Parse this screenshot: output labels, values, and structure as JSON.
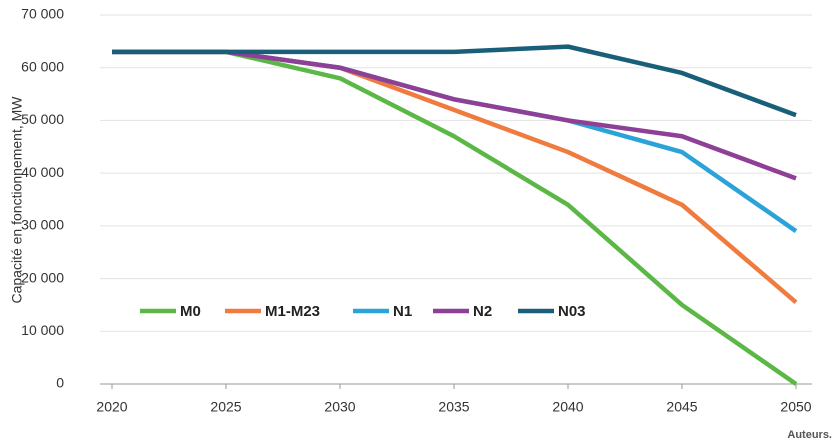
{
  "chart_data": {
    "type": "line",
    "y_label": "Capacité en fonctionnement, MW",
    "footnote": "Auteurs.",
    "x": [
      2020,
      2025,
      2030,
      2035,
      2040,
      2045,
      2050
    ],
    "xlim": [
      2020,
      2050
    ],
    "xticks": [
      2020,
      2025,
      2030,
      2035,
      2040,
      2045,
      2050
    ],
    "ylim": [
      0,
      70000
    ],
    "yticks": [
      0,
      {
        "value": 10000,
        "label": "10 000"
      },
      {
        "value": 20000,
        "label": "20 000"
      },
      {
        "value": 30000,
        "label": "30 000"
      },
      {
        "value": 40000,
        "label": "40 000"
      },
      {
        "value": 50000,
        "label": "50 000"
      },
      {
        "value": 60000,
        "label": "60 000"
      },
      {
        "value": 70000,
        "label": "70 000"
      }
    ],
    "grid": true,
    "series": [
      {
        "name": "M0",
        "color": "#5cb846",
        "values": [
          63000,
          63000,
          58000,
          47000,
          34000,
          15000,
          0
        ]
      },
      {
        "name": "M1-M23",
        "color": "#f07b3f",
        "values": [
          63000,
          63000,
          60000,
          52000,
          44000,
          34000,
          15500
        ]
      },
      {
        "name": "N1",
        "color": "#2ba3d8",
        "values": [
          63000,
          63000,
          60000,
          54000,
          50000,
          44000,
          29000
        ]
      },
      {
        "name": "N2",
        "color": "#8e3f96",
        "values": [
          63000,
          63000,
          60000,
          54000,
          50000,
          47000,
          39000
        ]
      },
      {
        "name": "N03",
        "color": "#1a5f7a",
        "values": [
          63000,
          63000,
          63000,
          63000,
          64000,
          59000,
          51000
        ]
      }
    ]
  }
}
